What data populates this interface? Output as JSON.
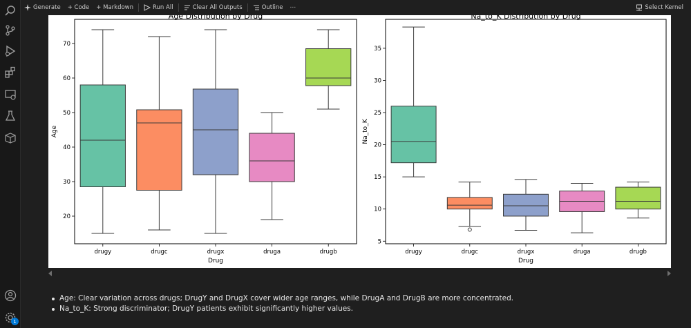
{
  "toolbar": {
    "generate": "Generate",
    "code": "+ Code",
    "markdown": "+ Markdown",
    "run_all": "Run All",
    "clear_outputs": "Clear All Outputs",
    "outline": "Outline",
    "more": "⋯",
    "kernel": "Select Kernel"
  },
  "activity_icons": [
    "search-icon",
    "source-control-icon",
    "run-debug-icon",
    "extensions-icon",
    "remote-explorer-icon",
    "testing-icon",
    "packages-icon",
    "account-icon",
    "settings-icon"
  ],
  "settings_badge": "1",
  "notes": [
    "Age: Clear variation across drugs; DrugY and DrugX cover wider age ranges, while DrugA and DrugB are more concentrated.",
    "Na_to_K: Strong discriminator; DrugY patients exhibit significantly higher values."
  ],
  "chart_data": [
    {
      "type": "box",
      "title": "Age Distribution by Drug",
      "xlabel": "Drug",
      "ylabel": "Age",
      "categories": [
        "drugy",
        "drugc",
        "drugx",
        "druga",
        "drugb"
      ],
      "colors": [
        "#66c2a5",
        "#fc8d62",
        "#8da0cb",
        "#e78ac3",
        "#a6d854"
      ],
      "ylim": [
        12,
        77
      ],
      "yticks": [
        20,
        30,
        40,
        50,
        60,
        70
      ],
      "boxes": [
        {
          "min": 15,
          "q1": 28.5,
          "median": 42,
          "q3": 58,
          "max": 74,
          "outliers": []
        },
        {
          "min": 16,
          "q1": 27.5,
          "median": 47,
          "q3": 50.8,
          "max": 72,
          "outliers": []
        },
        {
          "min": 15,
          "q1": 32,
          "median": 45,
          "q3": 56.8,
          "max": 74,
          "outliers": []
        },
        {
          "min": 19,
          "q1": 30,
          "median": 36,
          "q3": 44,
          "max": 50,
          "outliers": []
        },
        {
          "min": 51,
          "q1": 57.8,
          "median": 60,
          "q3": 68.5,
          "max": 74,
          "outliers": []
        }
      ]
    },
    {
      "type": "box",
      "title": "Na_to_K Distribution by Drug",
      "xlabel": "Drug",
      "ylabel": "Na_to_K",
      "categories": [
        "drugy",
        "drugc",
        "drugx",
        "druga",
        "drugb"
      ],
      "colors": [
        "#66c2a5",
        "#fc8d62",
        "#8da0cb",
        "#e78ac3",
        "#a6d854"
      ],
      "ylim": [
        4.6,
        39.5
      ],
      "yticks": [
        5,
        10,
        15,
        20,
        25,
        30,
        35
      ],
      "boxes": [
        {
          "min": 15,
          "q1": 17.2,
          "median": 20.5,
          "q3": 26,
          "max": 38.3,
          "outliers": []
        },
        {
          "min": 7.3,
          "q1": 10,
          "median": 10.6,
          "q3": 11.8,
          "max": 14.2,
          "outliers": [
            6.8
          ]
        },
        {
          "min": 6.7,
          "q1": 8.9,
          "median": 10.5,
          "q3": 12.3,
          "max": 14.6,
          "outliers": []
        },
        {
          "min": 6.3,
          "q1": 9.6,
          "median": 11.2,
          "q3": 12.8,
          "max": 14,
          "outliers": []
        },
        {
          "min": 8.6,
          "q1": 10,
          "median": 11.2,
          "q3": 13.4,
          "max": 14.2,
          "outliers": []
        }
      ]
    }
  ]
}
